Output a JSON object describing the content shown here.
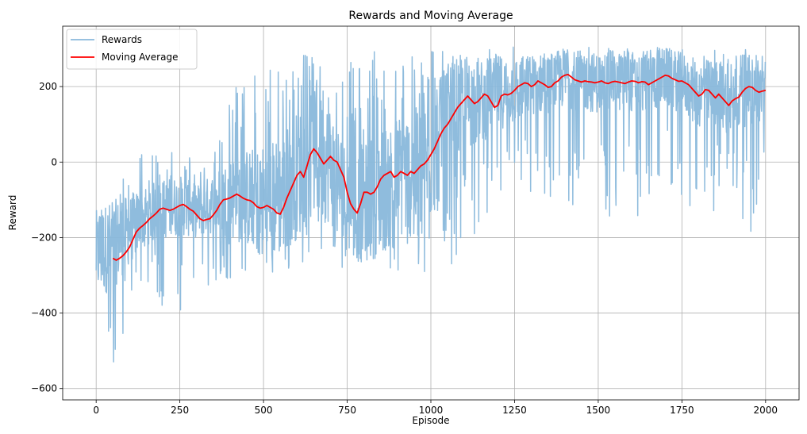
{
  "chart_data": {
    "type": "line",
    "title": "Rewards and Moving Average",
    "xlabel": "Episode",
    "ylabel": "Reward",
    "xlim": [
      -100,
      2100
    ],
    "ylim": [
      -630,
      360
    ],
    "xticks": [
      0,
      250,
      500,
      750,
      1000,
      1250,
      1500,
      1750,
      2000
    ],
    "xtick_labels": [
      "0",
      "250",
      "500",
      "750",
      "1000",
      "1250",
      "1500",
      "1750",
      "2000"
    ],
    "yticks": [
      -600,
      -400,
      -200,
      0,
      200
    ],
    "ytick_labels": [
      "−600",
      "−400",
      "−200",
      "0",
      "200"
    ],
    "grid": true,
    "legend_position": "top-left",
    "series": [
      {
        "name": "Rewards",
        "color": "#89b8db",
        "episodes": 2000,
        "summary_envelope": {
          "x": [
            0,
            50,
            100,
            150,
            200,
            250,
            300,
            350,
            400,
            450,
            500,
            550,
            600,
            650,
            700,
            750,
            800,
            850,
            900,
            950,
            1000,
            1050,
            1100,
            1150,
            1200,
            1250,
            1300,
            1350,
            1400,
            1450,
            1500,
            1550,
            1600,
            1650,
            1700,
            1750,
            1800,
            1850,
            1900,
            1950,
            2000
          ],
          "mean": [
            -240,
            -220,
            -180,
            -140,
            -125,
            -115,
            -130,
            -110,
            -95,
            -95,
            -110,
            -90,
            -35,
            20,
            -5,
            -110,
            -110,
            -80,
            -40,
            -30,
            10,
            100,
            160,
            160,
            185,
            190,
            205,
            210,
            225,
            215,
            210,
            215,
            210,
            215,
            225,
            210,
            180,
            185,
            160,
            190,
            185
          ],
          "min": [
            -470,
            -590,
            -400,
            -330,
            -390,
            -420,
            -330,
            -350,
            -310,
            -290,
            -320,
            -300,
            -280,
            -260,
            -260,
            -290,
            -310,
            -310,
            -300,
            -290,
            -330,
            -280,
            -240,
            -160,
            -160,
            -130,
            -100,
            -150,
            -120,
            -130,
            -160,
            -140,
            -180,
            -160,
            -110,
            -120,
            -130,
            -150,
            -120,
            -210,
            -60
          ],
          "max": [
            -130,
            -60,
            -20,
            40,
            10,
            40,
            10,
            60,
            200,
            210,
            260,
            260,
            290,
            280,
            260,
            260,
            280,
            300,
            290,
            300,
            310,
            300,
            300,
            300,
            310,
            310,
            310,
            320,
            320,
            310,
            310,
            300,
            310,
            300,
            310,
            300,
            290,
            300,
            290,
            300,
            290
          ],
          "spread": [
            120,
            120,
            90,
            80,
            80,
            80,
            70,
            80,
            110,
            130,
            160,
            160,
            170,
            170,
            160,
            150,
            160,
            170,
            170,
            170,
            170,
            160,
            130,
            110,
            100,
            90,
            80,
            80,
            80,
            80,
            80,
            80,
            80,
            80,
            80,
            80,
            90,
            90,
            90,
            90,
            90
          ]
        }
      },
      {
        "name": "Moving Average",
        "color": "#ff0000",
        "x": [
          50,
          60,
          70,
          80,
          90,
          100,
          110,
          120,
          130,
          140,
          150,
          160,
          170,
          180,
          190,
          200,
          210,
          220,
          230,
          240,
          250,
          260,
          270,
          280,
          290,
          300,
          310,
          320,
          330,
          340,
          350,
          360,
          370,
          380,
          390,
          400,
          410,
          420,
          430,
          440,
          450,
          460,
          470,
          480,
          490,
          500,
          510,
          520,
          530,
          540,
          550,
          560,
          570,
          580,
          590,
          600,
          610,
          620,
          630,
          640,
          650,
          660,
          670,
          680,
          690,
          700,
          710,
          720,
          730,
          740,
          750,
          760,
          770,
          780,
          790,
          800,
          810,
          820,
          830,
          840,
          850,
          860,
          870,
          880,
          890,
          900,
          910,
          920,
          930,
          940,
          950,
          960,
          970,
          980,
          990,
          1000,
          1010,
          1020,
          1030,
          1040,
          1050,
          1060,
          1070,
          1080,
          1090,
          1100,
          1110,
          1120,
          1130,
          1140,
          1150,
          1160,
          1170,
          1180,
          1190,
          1200,
          1210,
          1220,
          1230,
          1240,
          1250,
          1260,
          1270,
          1280,
          1290,
          1300,
          1310,
          1320,
          1330,
          1340,
          1350,
          1360,
          1370,
          1380,
          1390,
          1400,
          1410,
          1420,
          1430,
          1440,
          1450,
          1460,
          1470,
          1480,
          1490,
          1500,
          1510,
          1520,
          1530,
          1540,
          1550,
          1560,
          1570,
          1580,
          1590,
          1600,
          1610,
          1620,
          1630,
          1640,
          1650,
          1660,
          1670,
          1680,
          1690,
          1700,
          1710,
          1720,
          1730,
          1740,
          1750,
          1760,
          1770,
          1780,
          1790,
          1800,
          1810,
          1820,
          1830,
          1840,
          1850,
          1860,
          1870,
          1880,
          1890,
          1900,
          1910,
          1920,
          1930,
          1940,
          1950,
          1960,
          1970,
          1980,
          1990,
          2000
        ],
        "values": [
          -255,
          -260,
          -255,
          -248,
          -238,
          -225,
          -205,
          -185,
          -175,
          -168,
          -160,
          -150,
          -143,
          -135,
          -125,
          -122,
          -125,
          -128,
          -125,
          -120,
          -115,
          -112,
          -118,
          -125,
          -130,
          -140,
          -150,
          -155,
          -152,
          -150,
          -140,
          -128,
          -112,
          -100,
          -98,
          -95,
          -90,
          -85,
          -90,
          -96,
          -100,
          -102,
          -108,
          -118,
          -122,
          -120,
          -115,
          -120,
          -125,
          -135,
          -138,
          -120,
          -95,
          -75,
          -55,
          -35,
          -25,
          -40,
          -10,
          20,
          35,
          25,
          10,
          -5,
          5,
          15,
          5,
          0,
          -20,
          -40,
          -80,
          -110,
          -125,
          -135,
          -110,
          -80,
          -80,
          -85,
          -80,
          -65,
          -45,
          -35,
          -30,
          -25,
          -40,
          -35,
          -25,
          -30,
          -35,
          -25,
          -30,
          -20,
          -10,
          -5,
          5,
          20,
          35,
          55,
          75,
          90,
          100,
          115,
          130,
          145,
          155,
          165,
          175,
          165,
          155,
          160,
          170,
          180,
          175,
          160,
          145,
          150,
          175,
          180,
          178,
          182,
          190,
          200,
          205,
          210,
          208,
          200,
          205,
          215,
          210,
          205,
          198,
          200,
          210,
          215,
          225,
          230,
          232,
          225,
          218,
          215,
          212,
          215,
          213,
          212,
          210,
          212,
          215,
          210,
          208,
          212,
          214,
          212,
          210,
          208,
          212,
          215,
          214,
          210,
          213,
          212,
          205,
          210,
          215,
          220,
          225,
          230,
          228,
          222,
          218,
          214,
          215,
          210,
          205,
          195,
          185,
          175,
          180,
          192,
          190,
          180,
          170,
          180,
          170,
          160,
          150,
          162,
          168,
          172,
          185,
          195,
          200,
          198,
          190,
          185,
          188,
          190
        ]
      }
    ]
  }
}
